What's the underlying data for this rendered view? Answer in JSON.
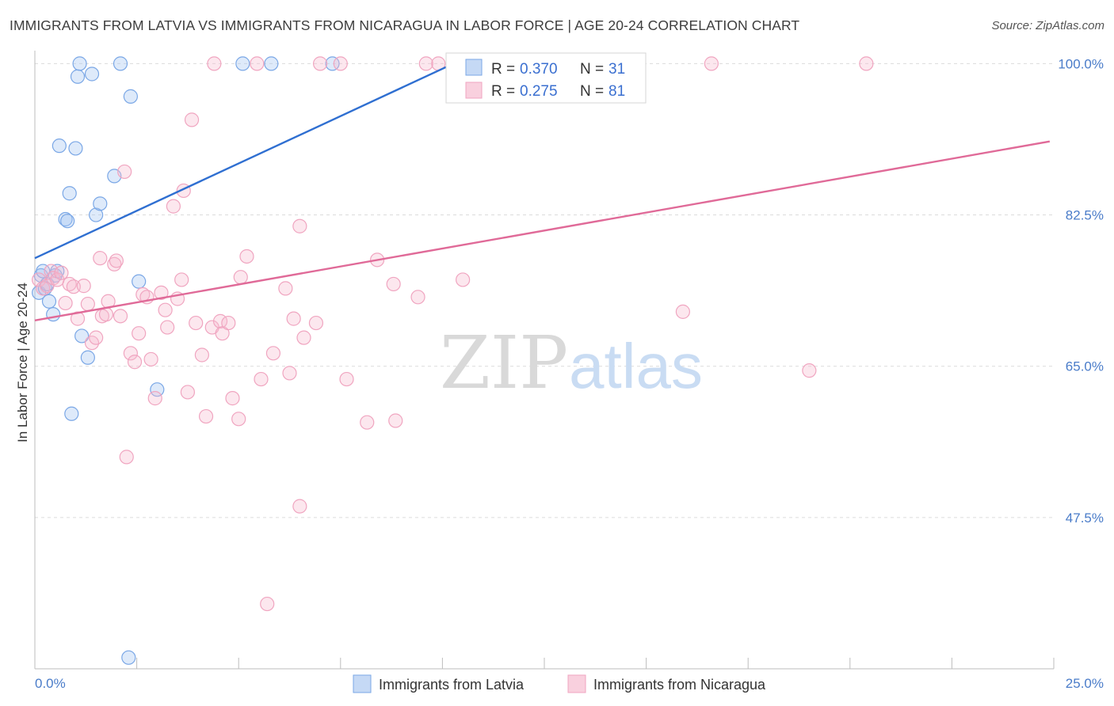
{
  "title": "IMMIGRANTS FROM LATVIA VS IMMIGRANTS FROM NICARAGUA IN LABOR FORCE | AGE 20-24 CORRELATION CHART",
  "source": "Source: ZipAtlas.com",
  "watermark": {
    "zip": "ZIP",
    "atlas": "atlas"
  },
  "colors": {
    "blue": "#7aa7e6",
    "blue_line": "#2f6fd1",
    "pink": "#f0a5c0",
    "pink_line": "#e06a98",
    "tick": "#4a7cc9"
  },
  "legend": {
    "rows": [
      {
        "r_label": "R = ",
        "r_value": "0.370",
        "n_label": "N = ",
        "n_value": "31",
        "series": "latvia"
      },
      {
        "r_label": "R = ",
        "r_value": "0.275",
        "n_label": "N = ",
        "n_value": "81",
        "series": "nicaragua"
      }
    ]
  },
  "chart_data": {
    "type": "scatter",
    "xlabel": "",
    "ylabel": "In Labor Force | Age 20-24",
    "xlim": [
      0,
      25
    ],
    "ylim": [
      30,
      101.5
    ],
    "x_tick_labels": [
      "0.0%",
      "25.0%"
    ],
    "y_ticks": [
      47.5,
      65.0,
      82.5,
      100.0
    ],
    "y_tick_labels": [
      "47.5%",
      "65.0%",
      "82.5%",
      "100.0%"
    ],
    "grid": true,
    "legend_position": "top-center",
    "series": [
      {
        "name": "Immigrants from Latvia",
        "color": "#7aa7e6",
        "trend": {
          "x": [
            0.0,
            10.5
          ],
          "y": [
            77.5,
            100.5
          ]
        },
        "points": [
          [
            0.1,
            73.5
          ],
          [
            0.15,
            75.5
          ],
          [
            0.2,
            76
          ],
          [
            0.25,
            74
          ],
          [
            0.3,
            74.5
          ],
          [
            0.35,
            72.5
          ],
          [
            0.45,
            71
          ],
          [
            0.5,
            75.5
          ],
          [
            0.55,
            76
          ],
          [
            0.6,
            90.5
          ],
          [
            0.75,
            82
          ],
          [
            0.8,
            81.8
          ],
          [
            0.85,
            85
          ],
          [
            0.9,
            59.5
          ],
          [
            1.0,
            90.2
          ],
          [
            1.05,
            98.5
          ],
          [
            1.1,
            100
          ],
          [
            1.15,
            68.5
          ],
          [
            1.3,
            66
          ],
          [
            1.4,
            98.8
          ],
          [
            1.5,
            82.5
          ],
          [
            1.6,
            83.8
          ],
          [
            1.95,
            87
          ],
          [
            2.1,
            100
          ],
          [
            2.3,
            31.3
          ],
          [
            2.35,
            96.2
          ],
          [
            2.55,
            74.8
          ],
          [
            3.0,
            62.3
          ],
          [
            5.1,
            100
          ],
          [
            5.8,
            100
          ],
          [
            7.3,
            100
          ]
        ]
      },
      {
        "name": "Immigrants from Nicaragua",
        "color": "#f0a5c0",
        "trend": {
          "x": [
            0.0,
            24.9
          ],
          "y": [
            70.3,
            91.0
          ]
        },
        "points": [
          [
            0.1,
            75
          ],
          [
            0.2,
            74
          ],
          [
            0.3,
            74.3
          ],
          [
            0.4,
            76
          ],
          [
            0.45,
            75.2
          ],
          [
            0.55,
            75
          ],
          [
            0.65,
            75.8
          ],
          [
            0.75,
            72.3
          ],
          [
            0.85,
            74.5
          ],
          [
            0.95,
            74.2
          ],
          [
            1.05,
            70.5
          ],
          [
            1.2,
            74.3
          ],
          [
            1.3,
            72.2
          ],
          [
            1.4,
            67.7
          ],
          [
            1.5,
            68.3
          ],
          [
            1.6,
            77.5
          ],
          [
            1.65,
            70.8
          ],
          [
            1.75,
            71
          ],
          [
            1.8,
            72.5
          ],
          [
            1.95,
            76.8
          ],
          [
            2.0,
            77.2
          ],
          [
            2.1,
            70.8
          ],
          [
            2.2,
            87.5
          ],
          [
            2.25,
            54.5
          ],
          [
            2.35,
            66.5
          ],
          [
            2.45,
            65.5
          ],
          [
            2.55,
            68.8
          ],
          [
            2.65,
            73.3
          ],
          [
            2.75,
            73
          ],
          [
            2.85,
            65.8
          ],
          [
            2.95,
            61.3
          ],
          [
            3.1,
            73.5
          ],
          [
            3.2,
            71.5
          ],
          [
            3.25,
            69.5
          ],
          [
            3.4,
            83.5
          ],
          [
            3.5,
            72.8
          ],
          [
            3.6,
            75
          ],
          [
            3.65,
            85.3
          ],
          [
            3.75,
            62
          ],
          [
            3.85,
            93.5
          ],
          [
            3.95,
            70
          ],
          [
            4.1,
            66.3
          ],
          [
            4.2,
            59.2
          ],
          [
            4.4,
            100
          ],
          [
            4.35,
            69.5
          ],
          [
            4.55,
            70.2
          ],
          [
            4.6,
            68.8
          ],
          [
            4.75,
            70
          ],
          [
            4.85,
            61.3
          ],
          [
            5.0,
            58.9
          ],
          [
            5.05,
            75.3
          ],
          [
            5.2,
            77.7
          ],
          [
            5.45,
            100
          ],
          [
            5.55,
            63.5
          ],
          [
            5.7,
            37.5
          ],
          [
            5.85,
            66.5
          ],
          [
            6.15,
            74
          ],
          [
            6.25,
            64.2
          ],
          [
            6.35,
            70.5
          ],
          [
            6.5,
            48.8
          ],
          [
            6.5,
            81.2
          ],
          [
            6.6,
            68.3
          ],
          [
            6.9,
            70
          ],
          [
            7.0,
            100
          ],
          [
            7.5,
            100
          ],
          [
            7.65,
            63.5
          ],
          [
            8.15,
            58.5
          ],
          [
            8.4,
            77.3
          ],
          [
            8.8,
            74.5
          ],
          [
            8.85,
            58.7
          ],
          [
            9.4,
            73
          ],
          [
            9.6,
            100
          ],
          [
            9.9,
            100
          ],
          [
            10.5,
            75
          ],
          [
            12.0,
            100
          ],
          [
            12.6,
            100
          ],
          [
            14.1,
            100
          ],
          [
            15.9,
            71.3
          ],
          [
            16.6,
            100
          ],
          [
            19.0,
            64.5
          ],
          [
            20.4,
            100
          ]
        ]
      }
    ]
  }
}
